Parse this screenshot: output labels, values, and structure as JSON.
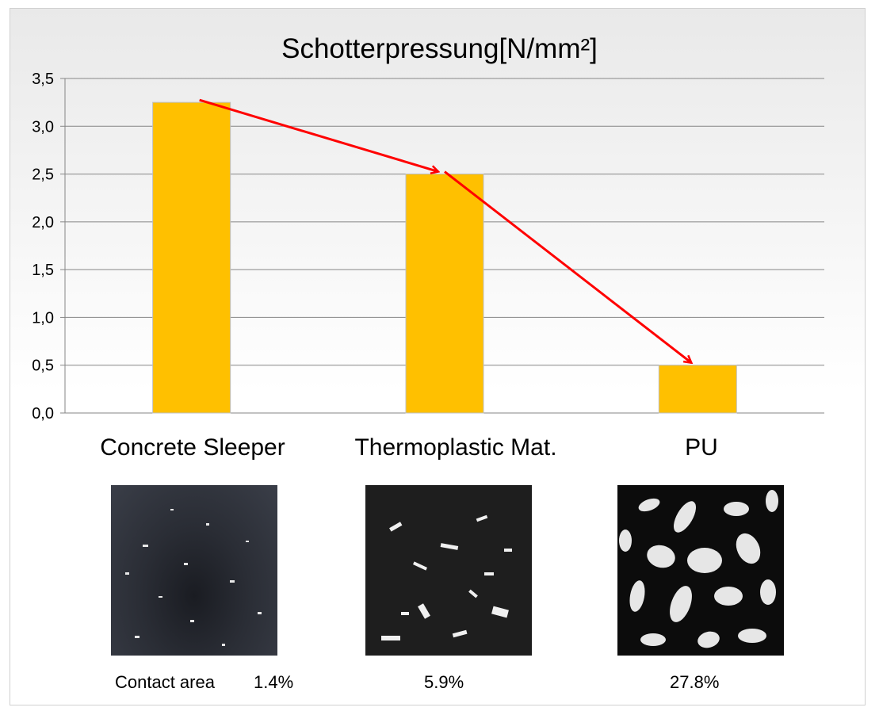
{
  "chart_data": {
    "type": "bar",
    "title": "Schotterpressung[N/mm²]",
    "categories": [
      "Concrete Sleeper",
      "Thermoplastic Mat.",
      "PU"
    ],
    "values": [
      3.25,
      2.5,
      0.5
    ],
    "ylim": [
      0,
      3.5
    ],
    "yticks": [
      "0,0",
      "0,5",
      "1,0",
      "1,5",
      "2,0",
      "2,5",
      "3,0",
      "3,5"
    ],
    "grid": true,
    "bar_color": "#ffc000",
    "arrow_color": "#ff0000"
  },
  "contact": {
    "label": "Contact area",
    "values": [
      "1.4%",
      "5.9%",
      "27.8%"
    ]
  }
}
